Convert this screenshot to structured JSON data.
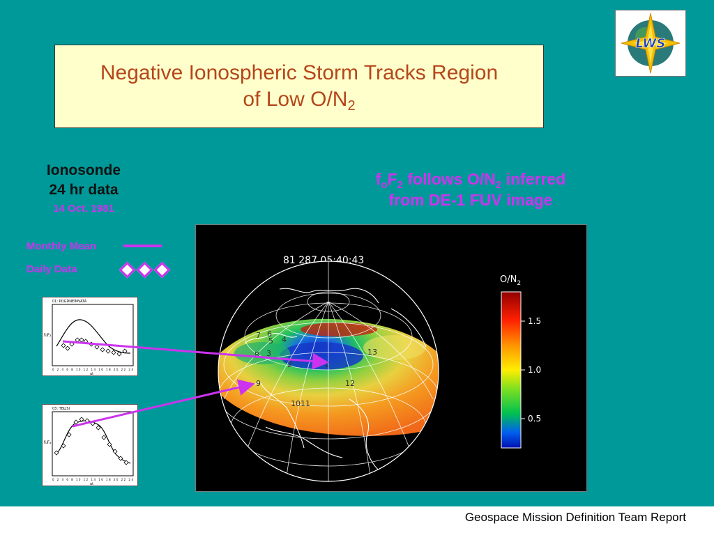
{
  "title": {
    "line1": "Negative Ionospheric Storm Tracks Region",
    "line2_pre": "of Low O/N",
    "line2_sub": "2"
  },
  "left_header": {
    "line1": "Ionosonde",
    "line2": "24 hr data",
    "date": "14 Oct. 1981"
  },
  "legend": {
    "mean_label": "Monthly Mean",
    "daily_label": "Daily  Data"
  },
  "right_header": {
    "f": "f",
    "f_sub": "o",
    "F": "F",
    "F_sub": "2",
    "mid": " follows O/N",
    "mid_sub": "2",
    "end": " inferred",
    "line2": "from DE-1 FUV image"
  },
  "fuv_image": {
    "timestamp": "81 287 05:40:43",
    "colorbar_label": "O/N",
    "colorbar_label_sub": "2",
    "colorbar_ticks": [
      "1.5",
      "1.0",
      "0.5"
    ],
    "station_labels": [
      "7",
      "6",
      "5",
      "4",
      "8",
      "3",
      "2",
      "1",
      "13",
      "9",
      "12",
      "10",
      "11"
    ]
  },
  "plots": [
    {
      "title": "01: POGDNEIMVATA",
      "ylabel": "f₀F₂",
      "xlabel": "ut",
      "xticks": "0 2 4 6 8 10 12 14 16 18 20 22 24"
    },
    {
      "title": "03: TBLISI",
      "ylabel": "f₀F₂",
      "xlabel": "ut",
      "xticks": "0 2 4 6 8 10 12 14 16 18 20 22 24"
    }
  ],
  "logo": {
    "text": "LWS"
  },
  "footer": {
    "text": "Geospace Mission Definition Team Report"
  },
  "colors": {
    "slide_bg": "#009999",
    "title_bg": "#ffffcc",
    "title_text": "#b5461a",
    "accent": "#cc33ee"
  }
}
